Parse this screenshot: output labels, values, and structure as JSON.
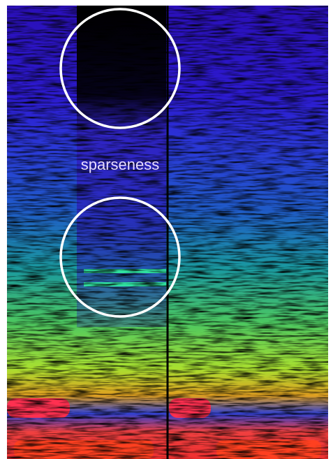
{
  "annotation": "sparseness"
}
